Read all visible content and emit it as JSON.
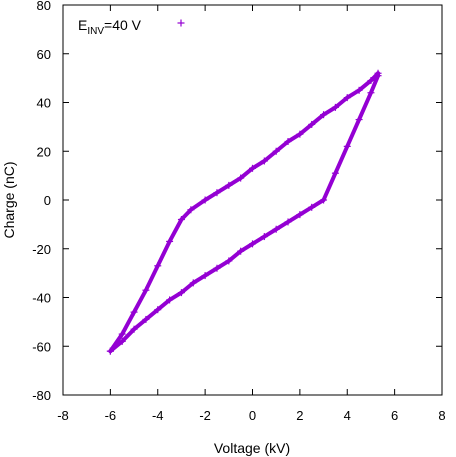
{
  "chart_data": {
    "type": "scatter",
    "xlabel": "Voltage (kV)",
    "ylabel": "Charge (nC)",
    "xlim": [
      -8,
      8
    ],
    "ylim": [
      -80,
      80
    ],
    "x_ticks": [
      -8,
      -6,
      -4,
      -2,
      0,
      2,
      4,
      6,
      8
    ],
    "y_ticks": [
      -80,
      -60,
      -40,
      -20,
      0,
      20,
      40,
      60,
      80
    ],
    "grid": false,
    "legend_position": "top-left",
    "marker": "+",
    "series": [
      {
        "name": "E_INV=40 V",
        "name_main": "E",
        "name_sub": "INV",
        "name_rest": "=40 V",
        "color": "#9400D3",
        "x": [
          -6.0,
          -5.5,
          -5.0,
          -4.5,
          -4.0,
          -3.5,
          -3.0,
          -2.6,
          -2.0,
          -1.5,
          -1.0,
          -0.5,
          0.0,
          0.5,
          1.0,
          1.5,
          2.0,
          2.5,
          3.0,
          3.5,
          4.0,
          4.5,
          5.0,
          5.3,
          5.3,
          5.0,
          4.5,
          4.0,
          3.5,
          3.0,
          2.5,
          2.0,
          1.5,
          1.0,
          0.5,
          0.0,
          -0.5,
          -1.0,
          -1.5,
          -2.0,
          -2.5,
          -3.0,
          -3.5,
          -4.0,
          -4.5,
          -5.0,
          -5.5,
          -6.0
        ],
        "y": [
          -62,
          -55,
          -46,
          -37,
          -27,
          -17,
          -8,
          -4,
          0,
          3,
          6,
          9,
          13,
          16,
          20,
          24,
          27,
          31,
          35,
          38,
          42,
          45,
          49,
          52,
          51,
          44,
          33,
          22,
          11,
          0,
          -3,
          -6,
          -9,
          -12,
          -15,
          -18,
          -21,
          -25,
          -28,
          -31,
          -34,
          -38,
          -41,
          -45,
          -49,
          -53,
          -58,
          -62
        ]
      }
    ]
  }
}
